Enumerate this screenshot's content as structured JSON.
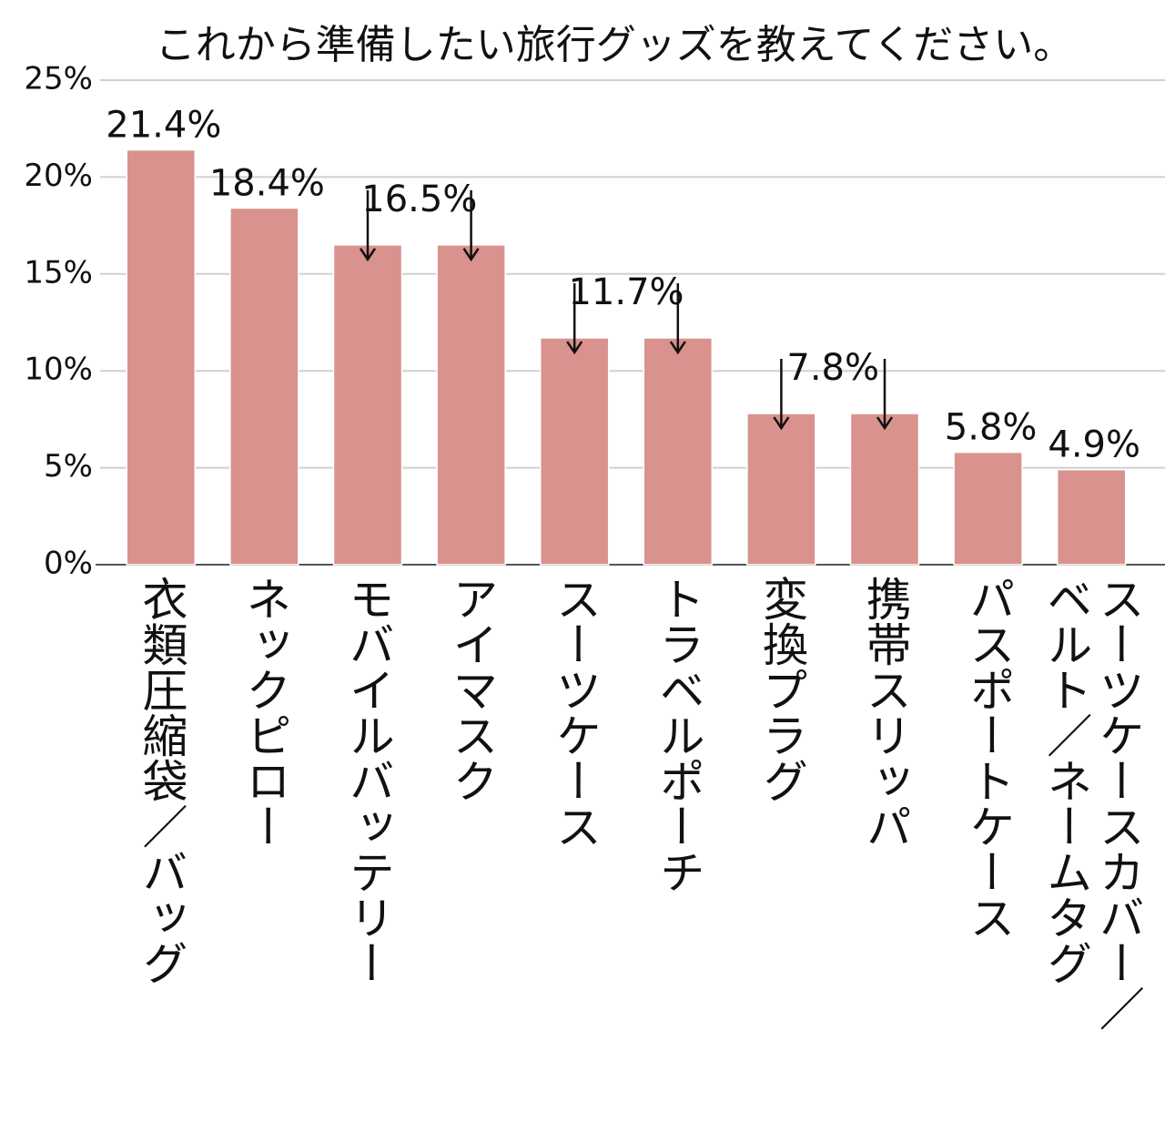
{
  "chart_data": {
    "type": "bar",
    "title": "これから準備したい旅行グッズを教えてください。",
    "categories": [
      "衣類圧縮袋／バッグ",
      "ネックピロー",
      "モバイルバッテリー",
      "アイマスク",
      "スーツケース",
      "トラベルポーチ",
      "変換プラグ",
      "携帯スリッパ",
      "パスポートケース",
      "スーツケースカバー／ベルト／ネームタグ"
    ],
    "values": [
      21.4,
      18.4,
      16.5,
      16.5,
      11.7,
      11.7,
      7.8,
      7.8,
      5.8,
      4.9
    ],
    "value_labels": [
      "21.4%",
      "18.4%",
      "16.5%",
      null,
      "11.7%",
      null,
      "7.8%",
      null,
      "5.8%",
      "4.9%"
    ],
    "color": "#d9928e",
    "ylim": [
      0,
      25
    ],
    "yticks": [
      {
        "value": 0,
        "label": "0%"
      },
      {
        "value": 5,
        "label": "5%"
      },
      {
        "value": 10,
        "label": "10%"
      },
      {
        "value": 15,
        "label": "15%"
      },
      {
        "value": 20,
        "label": "20%"
      },
      {
        "value": 25,
        "label": "25%"
      }
    ],
    "grid": true
  }
}
